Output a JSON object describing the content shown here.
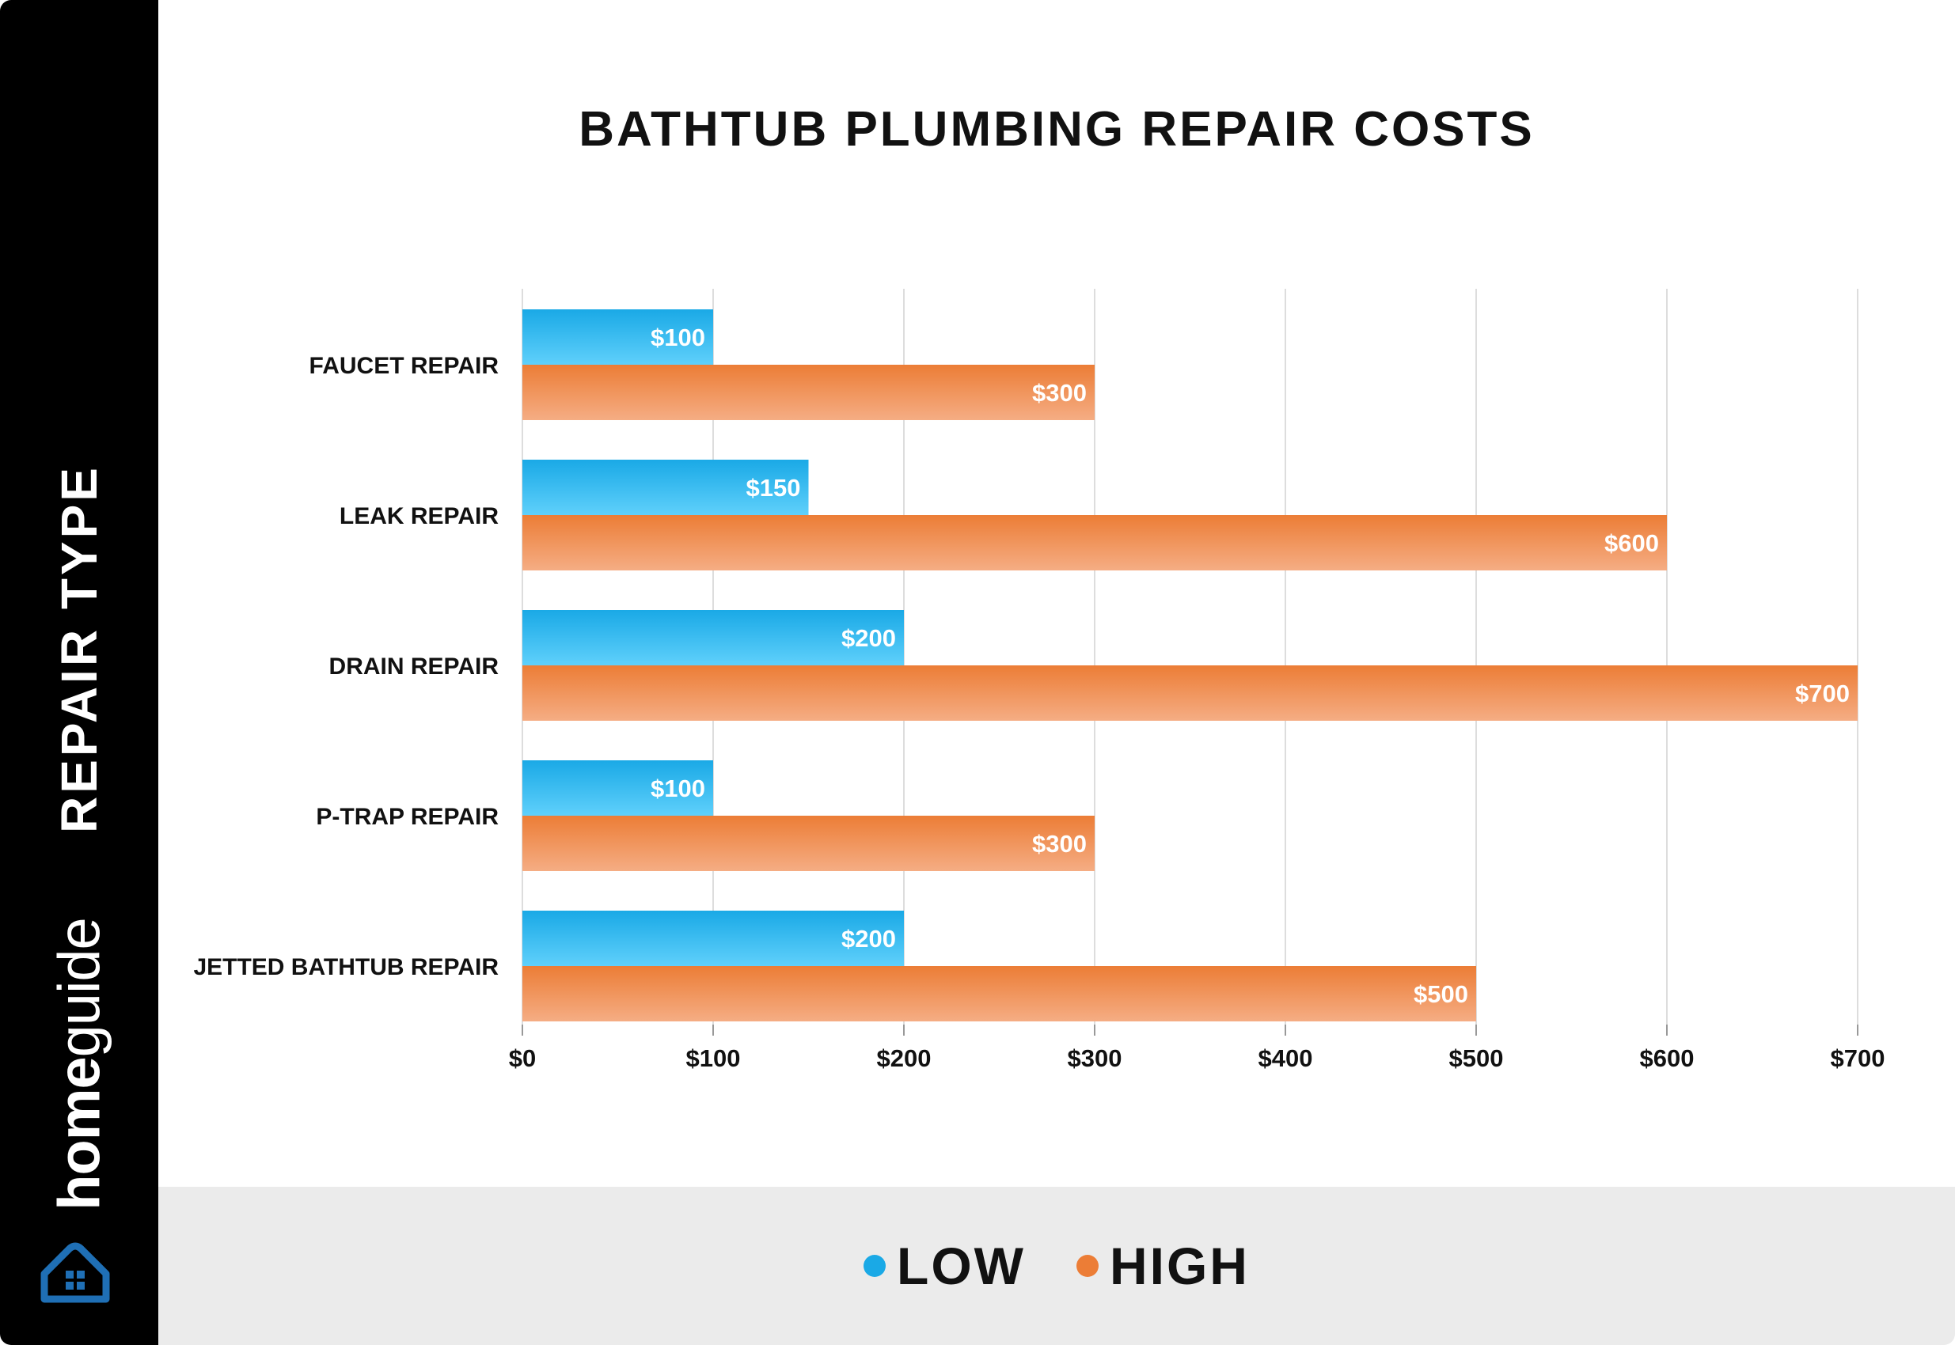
{
  "sidebar": {
    "axis_label": "REPAIR TYPE",
    "brand_home": "home",
    "brand_guide": "guide",
    "logo_icon": "house-icon"
  },
  "legend": {
    "low_label": "LOW",
    "high_label": "HIGH"
  },
  "colors": {
    "low_top": "#1aa9e6",
    "low_bottom": "#5fd0fb",
    "high_top": "#ec7d36",
    "high_bottom": "#f5ad84",
    "grid": "#dddddd",
    "brand_blue": "#1f6fb5"
  },
  "chart_data": {
    "type": "bar",
    "orientation": "horizontal",
    "title": "BATHTUB PLUMBING REPAIR COSTS",
    "ylabel": "REPAIR TYPE",
    "xlabel": "",
    "categories": [
      "FAUCET REPAIR",
      "LEAK REPAIR",
      "DRAIN REPAIR",
      "P-TRAP REPAIR",
      "JETTED BATHTUB REPAIR"
    ],
    "series": [
      {
        "name": "LOW",
        "values": [
          100,
          150,
          200,
          100,
          200
        ],
        "labels": [
          "$100",
          "$150",
          "$200",
          "$100",
          "$200"
        ]
      },
      {
        "name": "HIGH",
        "values": [
          300,
          600,
          700,
          300,
          500
        ],
        "labels": [
          "$300",
          "$600",
          "$700",
          "$300",
          "$500"
        ]
      }
    ],
    "xlim": [
      0,
      700
    ],
    "xticks": [
      0,
      100,
      200,
      300,
      400,
      500,
      600,
      700
    ],
    "xtick_labels": [
      "$0",
      "$100",
      "$200",
      "$300",
      "$400",
      "$500",
      "$600",
      "$700"
    ],
    "grid": true,
    "legend_position": "bottom"
  }
}
